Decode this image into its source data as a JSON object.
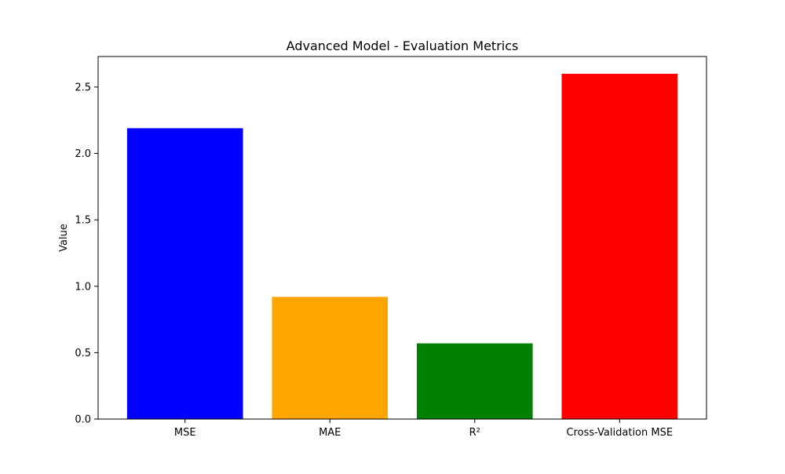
{
  "chart_data": {
    "type": "bar",
    "title": "Advanced Model - Evaluation Metrics",
    "xlabel": "",
    "ylabel": "Value",
    "categories": [
      "MSE",
      "MAE",
      "R²",
      "Cross-Validation MSE"
    ],
    "values": [
      2.19,
      0.92,
      0.57,
      2.6
    ],
    "colors": [
      "#0000ff",
      "#ffa500",
      "#008000",
      "#ff0000"
    ],
    "ylim": [
      0,
      2.73
    ],
    "yticks": [
      0.0,
      0.5,
      1.0,
      1.5,
      2.0,
      2.5
    ],
    "ytick_labels": [
      "0.0",
      "0.5",
      "1.0",
      "1.5",
      "2.0",
      "2.5"
    ],
    "grid": false,
    "legend": "none"
  }
}
